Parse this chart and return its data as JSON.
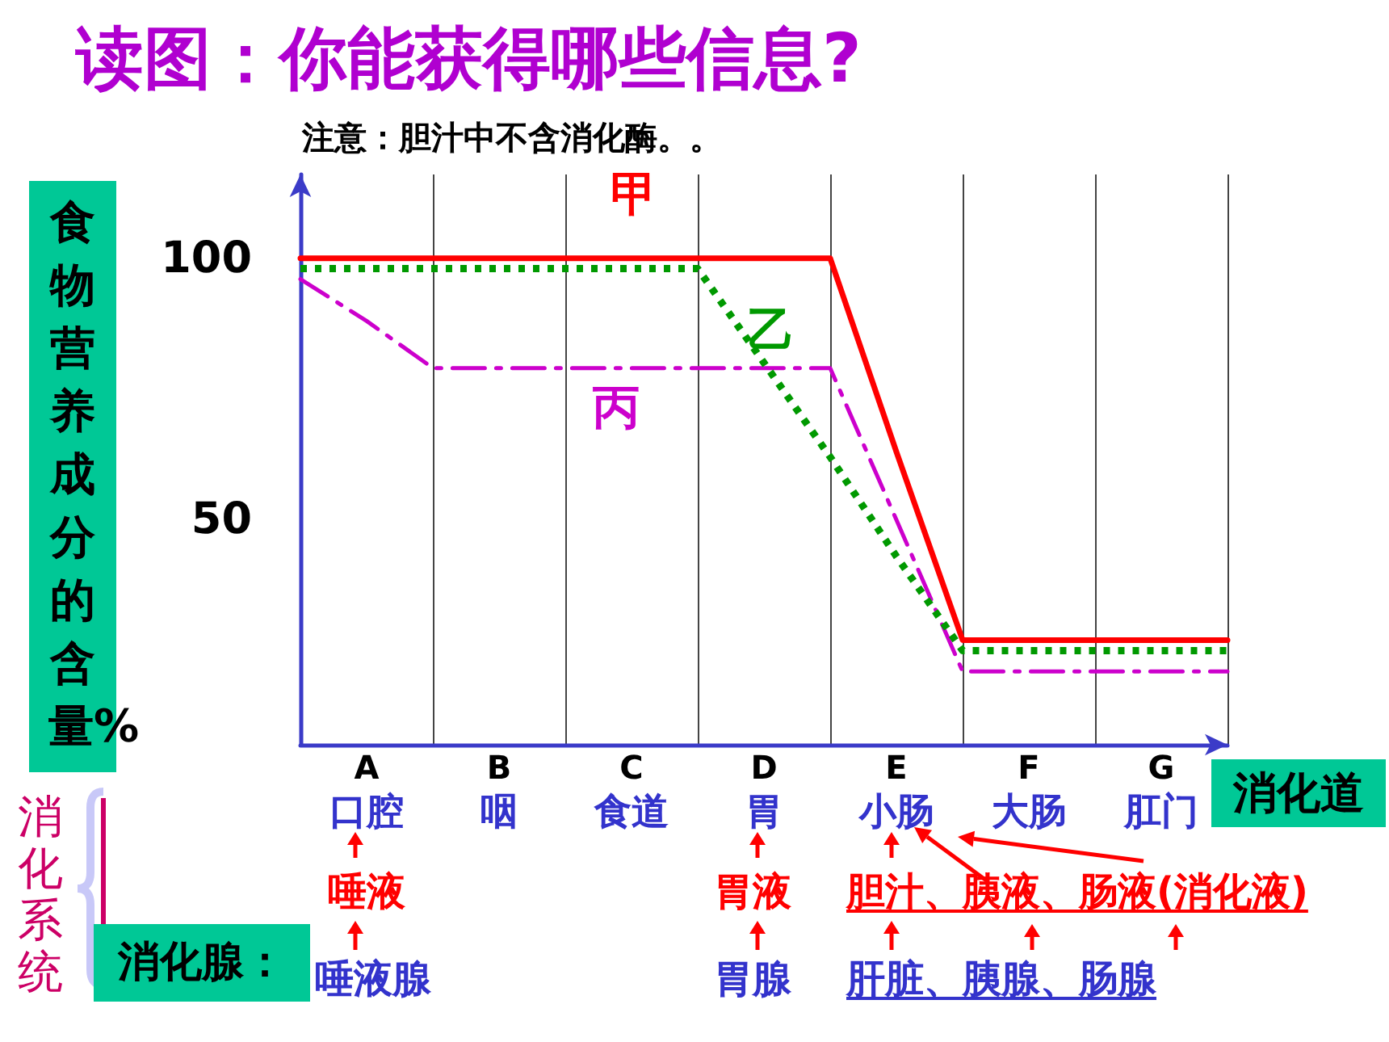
{
  "chart_data": {
    "type": "line",
    "title": "读图：你能获得哪些信息?",
    "xlabel": "消化道",
    "ylabel": "食物营养成分的含量%",
    "ylim": [
      7,
      116
    ],
    "yticks": [
      50,
      100
    ],
    "categories": [
      null,
      "A\n口腔",
      null,
      "B\n咽",
      null,
      "C\n食道",
      null,
      "D\n胃",
      null,
      "E\n小肠",
      null,
      "F\n大肠",
      null,
      "G\n肛门",
      null
    ],
    "marker": "none",
    "grid": "x",
    "series": [
      {
        "name": "甲",
        "color": "#ff0000",
        "line_style": "solid",
        "values": [
          100,
          100,
          100,
          100,
          100,
          100,
          100,
          100,
          100,
          63,
          27,
          27,
          27,
          27,
          27
        ]
      },
      {
        "name": "乙",
        "color": "#009900",
        "line_style": "dotted",
        "values": [
          98,
          98,
          98,
          98,
          98,
          98,
          98,
          80,
          62,
          43,
          25,
          25,
          25,
          25,
          25
        ]
      },
      {
        "name": "丙",
        "color": "#cc00cc",
        "line_style": "dashed",
        "values": [
          96,
          88,
          79,
          79,
          79,
          79,
          79,
          79,
          79,
          50,
          21,
          21,
          21,
          21,
          21
        ]
      }
    ],
    "annotations": [
      "注意：胆汁中不含消化酶。。",
      "消化系统",
      "消化腺：",
      "唾液",
      "唾液腺",
      "胃液",
      "胃腺",
      "胆汁、胰液、肠液(消化液)",
      "肝脏、胰腺、肠腺"
    ]
  }
}
